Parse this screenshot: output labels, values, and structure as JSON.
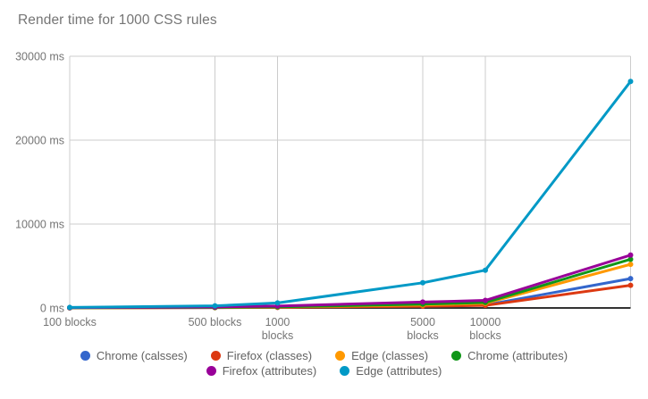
{
  "chart_data": {
    "type": "line",
    "title": "Render time for 1000 CSS rules",
    "legend_position": "bottom",
    "grid": true,
    "x_axis": {
      "scale": "log",
      "range": [
        100,
        50000
      ],
      "ticks": [
        100,
        500,
        1000,
        5000,
        10000
      ],
      "tick_labels": [
        [
          "100 blocks"
        ],
        [
          "500 blocks"
        ],
        [
          "1000",
          "blocks"
        ],
        [
          "5000",
          "blocks"
        ],
        [
          "10000",
          "blocks"
        ]
      ]
    },
    "y_axis": {
      "range": [
        0,
        30000
      ],
      "ticks": [
        0,
        10000,
        20000,
        30000
      ],
      "tick_labels": [
        "0 ms",
        "10000 ms",
        "20000 ms",
        "30000 ms"
      ]
    },
    "x": [
      100,
      500,
      1000,
      5000,
      10000,
      50000
    ],
    "series": [
      {
        "name": "Chrome (calsses)",
        "color": "#3366CC",
        "values": [
          15,
          40,
          80,
          220,
          350,
          3500
        ]
      },
      {
        "name": "Firefox (classes)",
        "color": "#DC3912",
        "values": [
          10,
          35,
          70,
          200,
          300,
          2700
        ]
      },
      {
        "name": "Edge (classes)",
        "color": "#FF9900",
        "values": [
          20,
          60,
          110,
          350,
          550,
          5200
        ]
      },
      {
        "name": "Chrome (attributes)",
        "color": "#109618",
        "values": [
          25,
          70,
          130,
          450,
          650,
          5800
        ]
      },
      {
        "name": "Firefox (attributes)",
        "color": "#990099",
        "values": [
          40,
          120,
          230,
          700,
          900,
          6300
        ]
      },
      {
        "name": "Edge (attributes)",
        "color": "#0099C6",
        "values": [
          60,
          250,
          600,
          3000,
          4500,
          27000
        ]
      }
    ],
    "legend_rows": [
      [
        0,
        1,
        2,
        3
      ],
      [
        4,
        5
      ]
    ],
    "style_colors": {
      "gridline": "#cccccc",
      "baseline": "#333333",
      "axis_text": "#757575",
      "title_text": "#757575",
      "legend_text": "#616161"
    }
  }
}
